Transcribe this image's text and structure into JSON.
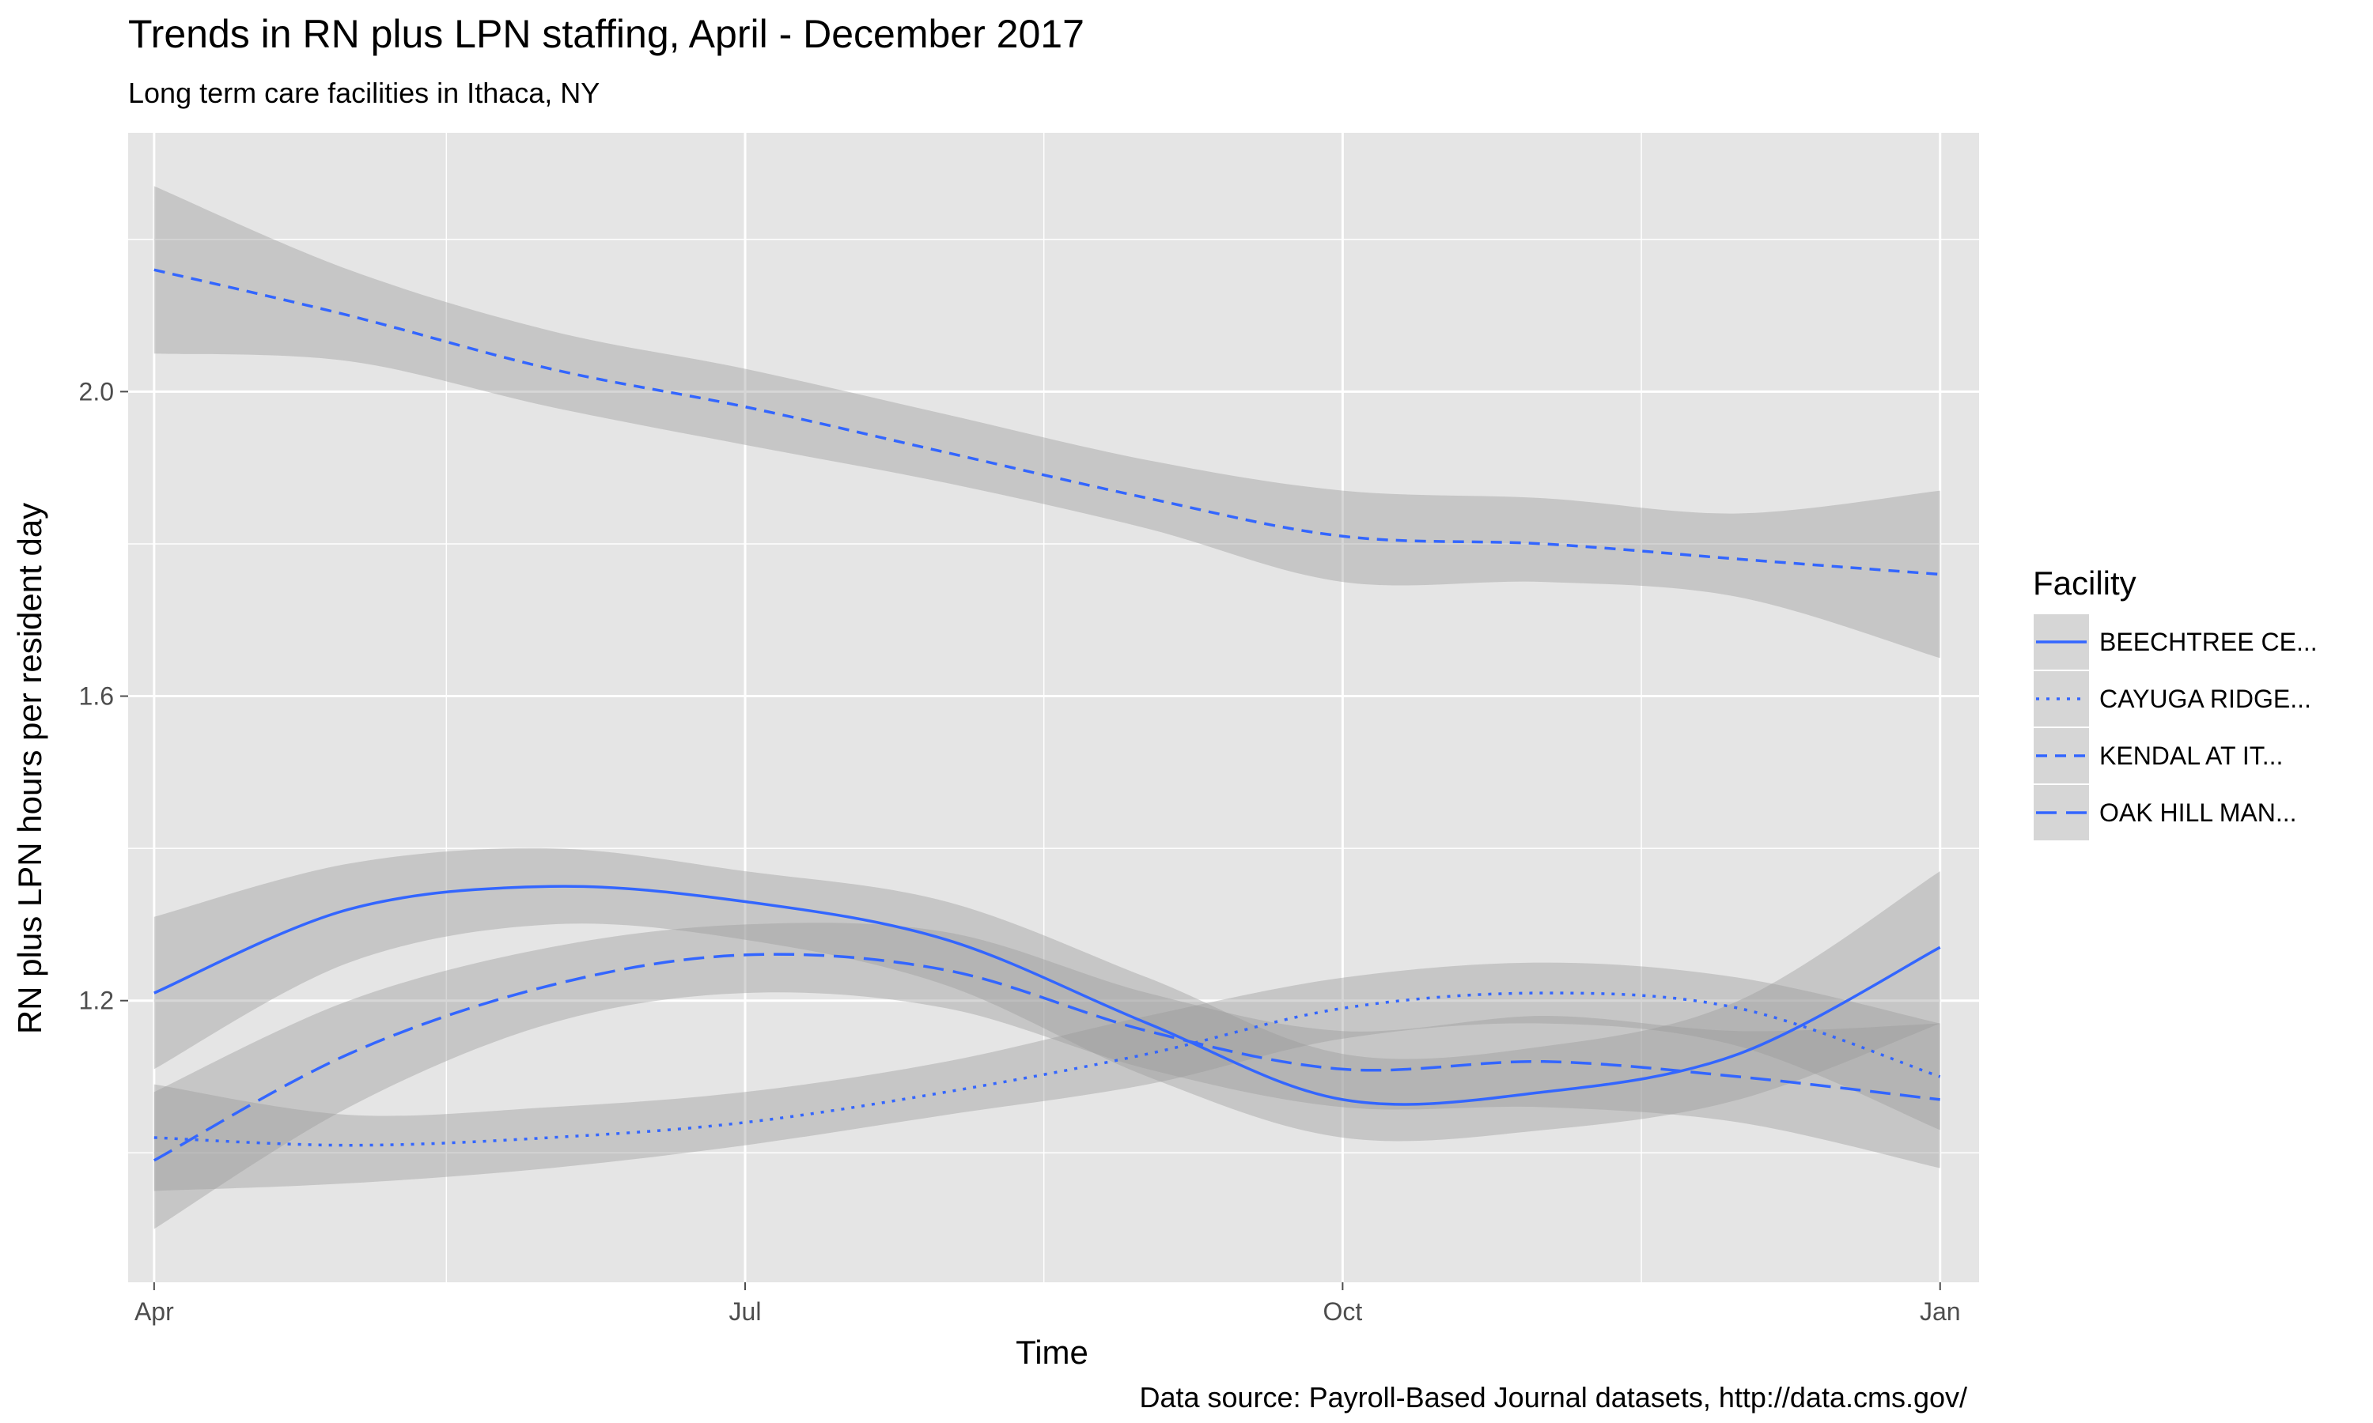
{
  "chart_data": {
    "type": "line",
    "title": "Trends in RN plus LPN staffing, April - December 2017",
    "subtitle": "Long term care facilities in Ithaca, NY",
    "xlabel": "Time",
    "ylabel": "RN plus LPN hours per resident day",
    "caption": "Data source: Payroll-Based Journal datasets, http://data.cms.gov/",
    "x_ticks": [
      "Apr",
      "Jul",
      "Oct",
      "Jan"
    ],
    "x_range": [
      "2017-03-28",
      "2018-01-07"
    ],
    "y_ticks": [
      "1.2",
      "1.6",
      "2.0"
    ],
    "ylim": [
      0.83,
      2.34
    ],
    "x": [
      "2017-04-01",
      "2017-05-01",
      "2017-06-01",
      "2017-07-01",
      "2017-08-01",
      "2017-09-01",
      "2017-10-01",
      "2017-11-01",
      "2017-12-01",
      "2018-01-01"
    ],
    "series": [
      {
        "name": "BEECHTREE CE...",
        "linetype": "solid",
        "values": [
          1.21,
          1.32,
          1.35,
          1.33,
          1.28,
          1.17,
          1.07,
          1.08,
          1.13,
          1.27
        ],
        "lower": [
          1.11,
          1.25,
          1.3,
          1.28,
          1.22,
          1.1,
          1.02,
          1.03,
          1.07,
          1.17
        ],
        "upper": [
          1.31,
          1.38,
          1.4,
          1.37,
          1.33,
          1.23,
          1.13,
          1.14,
          1.2,
          1.37
        ]
      },
      {
        "name": "CAYUGA RIDGE...",
        "linetype": "dotted",
        "values": [
          1.02,
          1.01,
          1.02,
          1.04,
          1.08,
          1.13,
          1.19,
          1.21,
          1.19,
          1.1
        ],
        "lower": [
          0.95,
          0.96,
          0.98,
          1.01,
          1.05,
          1.09,
          1.15,
          1.17,
          1.14,
          1.03
        ],
        "upper": [
          1.09,
          1.05,
          1.06,
          1.08,
          1.12,
          1.18,
          1.23,
          1.25,
          1.23,
          1.17
        ]
      },
      {
        "name": "KENDAL AT IT...",
        "linetype": "dashed",
        "values": [
          2.16,
          2.1,
          2.03,
          1.98,
          1.92,
          1.86,
          1.81,
          1.8,
          1.78,
          1.76
        ],
        "lower": [
          2.05,
          2.04,
          1.98,
          1.93,
          1.88,
          1.82,
          1.75,
          1.75,
          1.73,
          1.65
        ],
        "upper": [
          2.27,
          2.16,
          2.08,
          2.03,
          1.97,
          1.91,
          1.87,
          1.86,
          1.84,
          1.87
        ]
      },
      {
        "name": "OAK HILL MAN...",
        "linetype": "longdash",
        "values": [
          0.99,
          1.13,
          1.22,
          1.26,
          1.24,
          1.16,
          1.11,
          1.12,
          1.1,
          1.07
        ],
        "lower": [
          0.9,
          1.06,
          1.17,
          1.21,
          1.19,
          1.11,
          1.06,
          1.06,
          1.04,
          0.98
        ],
        "upper": [
          1.08,
          1.2,
          1.27,
          1.3,
          1.29,
          1.21,
          1.16,
          1.18,
          1.16,
          1.17
        ]
      }
    ],
    "legend_title": "Facility",
    "legend_position": "right",
    "line_color": "#3366FF",
    "ribbon_color": "#999999",
    "panel_background": "#E5E5E5",
    "grid": true,
    "grid_color": "#FFFFFF"
  }
}
